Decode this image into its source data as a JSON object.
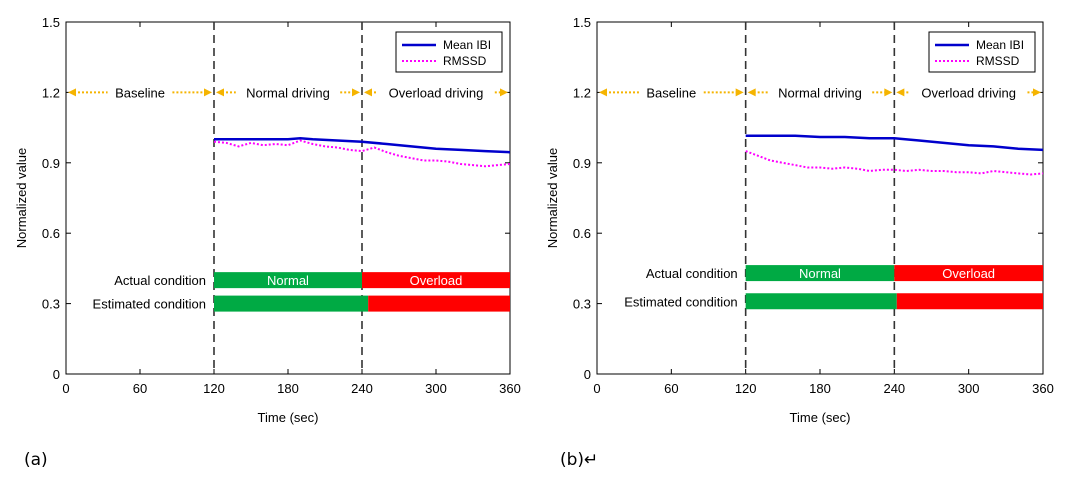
{
  "panels": [
    {
      "label": "(a)",
      "chart_data": {
        "type": "line",
        "xlabel": "Time (sec)",
        "ylabel": "Normalized value",
        "xlim": [
          0,
          360
        ],
        "ylim": [
          0,
          1.5
        ],
        "xticks": [
          0,
          60,
          120,
          180,
          240,
          300,
          360
        ],
        "yticks": [
          "0",
          "0.3",
          "0.6",
          "0.9",
          "1.2",
          "1.5"
        ],
        "legend": "top-right",
        "grid": false,
        "series": [
          {
            "name": "Mean IBI",
            "color": "#0000cc",
            "style": "solid",
            "x": [
              120,
              140,
              160,
              180,
              190,
              200,
              220,
              240,
              260,
              280,
              300,
              320,
              340,
              360
            ],
            "y": [
              1.0,
              1.0,
              1.0,
              1.0,
              1.005,
              1.0,
              0.995,
              0.99,
              0.98,
              0.97,
              0.96,
              0.955,
              0.95,
              0.945
            ]
          },
          {
            "name": "RMSSD",
            "color": "#ff00ff",
            "style": "dotted",
            "x": [
              120,
              130,
              140,
              150,
              160,
              170,
              180,
              190,
              200,
              210,
              220,
              230,
              240,
              250,
              260,
              270,
              280,
              290,
              300,
              310,
              320,
              330,
              340,
              350,
              360
            ],
            "y": [
              0.99,
              0.985,
              0.97,
              0.985,
              0.975,
              0.98,
              0.975,
              0.995,
              0.98,
              0.97,
              0.965,
              0.955,
              0.95,
              0.965,
              0.945,
              0.93,
              0.92,
              0.91,
              0.91,
              0.905,
              0.895,
              0.89,
              0.885,
              0.89,
              0.895
            ]
          }
        ],
        "vlines": [
          120,
          240
        ],
        "phases": [
          {
            "label": "Baseline",
            "start": 0,
            "end": 120
          },
          {
            "label": "Normal driving",
            "start": 120,
            "end": 240
          },
          {
            "label": "Overload driving",
            "start": 240,
            "end": 360
          }
        ],
        "phase_y": 1.2,
        "condition_rows": [
          {
            "label": "Actual condition",
            "y": 0.4,
            "segments": [
              {
                "start": 120,
                "end": 240,
                "text": "Normal",
                "color": "#00aa44"
              },
              {
                "start": 240,
                "end": 360,
                "text": "Overload",
                "color": "#ff0000"
              }
            ]
          },
          {
            "label": "Estimated condition",
            "y": 0.3,
            "segments": [
              {
                "start": 120,
                "end": 245,
                "text": "",
                "color": "#00aa44"
              },
              {
                "start": 245,
                "end": 360,
                "text": "",
                "color": "#ff0000"
              }
            ]
          }
        ]
      }
    },
    {
      "label": "(b)↵",
      "chart_data": {
        "type": "line",
        "xlabel": "Time (sec)",
        "ylabel": "Normalized value",
        "xlim": [
          0,
          360
        ],
        "ylim": [
          0,
          1.5
        ],
        "xticks": [
          0,
          60,
          120,
          180,
          240,
          300,
          360
        ],
        "yticks": [
          "0",
          "0.3",
          "0.6",
          "0.9",
          "1.2",
          "1.5"
        ],
        "legend": "top-right",
        "grid": false,
        "series": [
          {
            "name": "Mean IBI",
            "color": "#0000cc",
            "style": "solid",
            "x": [
              120,
              140,
              160,
              180,
              200,
              220,
              240,
              260,
              280,
              300,
              320,
              340,
              360
            ],
            "y": [
              1.015,
              1.015,
              1.015,
              1.01,
              1.01,
              1.005,
              1.005,
              0.995,
              0.985,
              0.975,
              0.97,
              0.96,
              0.955
            ]
          },
          {
            "name": "RMSSD",
            "color": "#ff00ff",
            "style": "dotted",
            "x": [
              120,
              130,
              140,
              150,
              160,
              170,
              180,
              190,
              200,
              210,
              220,
              230,
              240,
              250,
              260,
              270,
              280,
              290,
              300,
              310,
              320,
              330,
              340,
              350,
              360
            ],
            "y": [
              0.95,
              0.93,
              0.91,
              0.9,
              0.89,
              0.88,
              0.88,
              0.875,
              0.88,
              0.875,
              0.865,
              0.87,
              0.87,
              0.865,
              0.87,
              0.865,
              0.865,
              0.86,
              0.86,
              0.855,
              0.865,
              0.86,
              0.855,
              0.85,
              0.855
            ]
          }
        ],
        "vlines": [
          120,
          240
        ],
        "phases": [
          {
            "label": "Baseline",
            "start": 0,
            "end": 120
          },
          {
            "label": "Normal driving",
            "start": 120,
            "end": 240
          },
          {
            "label": "Overload driving",
            "start": 240,
            "end": 360
          }
        ],
        "phase_y": 1.2,
        "condition_rows": [
          {
            "label": "Actual condition",
            "y": 0.43,
            "segments": [
              {
                "start": 120,
                "end": 240,
                "text": "Normal",
                "color": "#00aa44"
              },
              {
                "start": 240,
                "end": 360,
                "text": "Overload",
                "color": "#ff0000"
              }
            ]
          },
          {
            "label": "Estimated condition",
            "y": 0.31,
            "segments": [
              {
                "start": 120,
                "end": 242,
                "text": "",
                "color": "#00aa44"
              },
              {
                "start": 242,
                "end": 360,
                "text": "",
                "color": "#ff0000"
              }
            ]
          }
        ]
      }
    }
  ]
}
